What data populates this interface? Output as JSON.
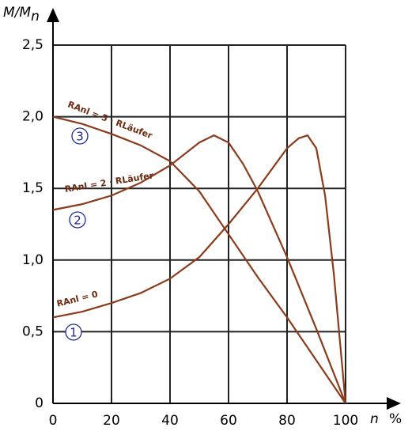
{
  "chart_data": {
    "type": "line",
    "y_label": "M/M",
    "y_label_sub": "n",
    "x_label": "n",
    "x_unit": "%",
    "xlim": [
      0,
      100
    ],
    "ylim": [
      0,
      2.5
    ],
    "xticks": [
      0,
      20,
      40,
      60,
      80,
      100
    ],
    "yticks": [
      0,
      {
        "value": 0.5,
        "label": "0,5"
      },
      {
        "value": 1.0,
        "label": "1,0"
      },
      {
        "value": 1.5,
        "label": "1,5"
      },
      {
        "value": 2.0,
        "label": "2,0"
      },
      {
        "value": 2.5,
        "label": "2,5"
      }
    ],
    "grid": true,
    "series": [
      {
        "name": "RAnl = 0",
        "marker": "1",
        "color": "#8b3a1a",
        "x": [
          0,
          10,
          20,
          30,
          40,
          50,
          60,
          70,
          80,
          84,
          87,
          90,
          93,
          96,
          100
        ],
        "values": [
          0.6,
          0.64,
          0.7,
          0.77,
          0.87,
          1.02,
          1.25,
          1.5,
          1.78,
          1.85,
          1.87,
          1.78,
          1.45,
          0.9,
          0
        ]
      },
      {
        "name": "RAnl = 2 · RLäufer",
        "marker": "2",
        "color": "#8b3a1a",
        "x": [
          0,
          10,
          20,
          30,
          40,
          45,
          50,
          55,
          60,
          65,
          70,
          80,
          90,
          100
        ],
        "values": [
          1.35,
          1.39,
          1.45,
          1.54,
          1.66,
          1.74,
          1.82,
          1.87,
          1.82,
          1.67,
          1.48,
          1.02,
          0.52,
          0
        ]
      },
      {
        "name": "RAnl = 5 · RLäufer",
        "marker": "3",
        "color": "#8b3a1a",
        "x": [
          0,
          10,
          20,
          30,
          40,
          50,
          60,
          70,
          80,
          90,
          100
        ],
        "values": [
          2.0,
          1.95,
          1.88,
          1.8,
          1.69,
          1.48,
          1.18,
          0.88,
          0.6,
          0.3,
          0
        ]
      }
    ]
  }
}
